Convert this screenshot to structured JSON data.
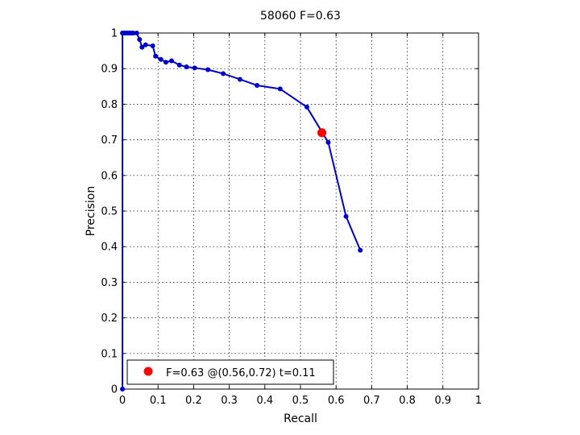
{
  "chart_data": {
    "type": "line",
    "title": "58060 F=0.63",
    "xlabel": "Recall",
    "ylabel": "Precision",
    "xlim": [
      0,
      1
    ],
    "ylim": [
      0,
      1
    ],
    "grid": true,
    "xticks": [
      "0",
      "0.1",
      "0.2",
      "0.3",
      "0.4",
      "0.5",
      "0.6",
      "0.7",
      "0.8",
      "0.9",
      "1"
    ],
    "yticks": [
      "0",
      "0.1",
      "0.2",
      "0.3",
      "0.4",
      "0.5",
      "0.6",
      "0.7",
      "0.8",
      "0.9",
      "1"
    ],
    "series": [
      {
        "color": "#0000cc",
        "points": [
          [
            0.0,
            0.0
          ],
          [
            0.0,
            1.0
          ],
          [
            0.005,
            1.0
          ],
          [
            0.01,
            1.0
          ],
          [
            0.015,
            1.0
          ],
          [
            0.02,
            1.0
          ],
          [
            0.025,
            1.0
          ],
          [
            0.03,
            1.0
          ],
          [
            0.04,
            1.0
          ],
          [
            0.048,
            0.982
          ],
          [
            0.055,
            0.96
          ],
          [
            0.065,
            0.967
          ],
          [
            0.085,
            0.964
          ],
          [
            0.093,
            0.935
          ],
          [
            0.108,
            0.926
          ],
          [
            0.122,
            0.918
          ],
          [
            0.138,
            0.922
          ],
          [
            0.16,
            0.91
          ],
          [
            0.18,
            0.905
          ],
          [
            0.203,
            0.902
          ],
          [
            0.24,
            0.897
          ],
          [
            0.283,
            0.886
          ],
          [
            0.33,
            0.87
          ],
          [
            0.378,
            0.853
          ],
          [
            0.443,
            0.843
          ],
          [
            0.518,
            0.792
          ],
          [
            0.578,
            0.693
          ],
          [
            0.628,
            0.485
          ],
          [
            0.668,
            0.39
          ]
        ]
      }
    ],
    "highlight": {
      "recall": 0.56,
      "precision": 0.72,
      "color": "#ff0000",
      "label": "F=0.63 @(0.56,0.72) t=0.11"
    },
    "legend_placement": "bottom-left"
  }
}
